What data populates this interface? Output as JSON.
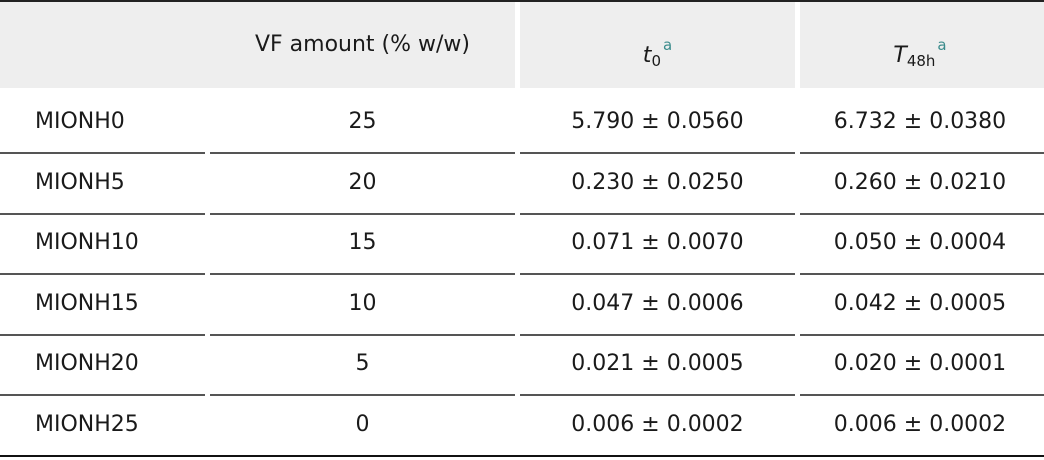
{
  "table": {
    "header": {
      "vf_amount": "VF amount (% w/w)",
      "t0": {
        "symbol": "t",
        "sub": "0",
        "sup": "a"
      },
      "t48h": {
        "symbol": "T",
        "sub": "48h",
        "sup": "a"
      }
    },
    "rows": [
      [
        "MIONH0",
        25,
        "5.790 ± 0.0560",
        "6.732 ± 0.0380"
      ],
      [
        "MIONH5",
        20,
        "0.230 ± 0.0250",
        "0.260 ± 0.0210"
      ],
      [
        "MIONH10",
        15,
        "0.071 ± 0.0070",
        "0.050 ± 0.0004"
      ],
      [
        "MIONH15",
        10,
        "0.047 ± 0.0006",
        "0.042 ± 0.0005"
      ],
      [
        "MIONH20",
        5,
        "0.021 ± 0.0005",
        "0.020 ± 0.0001"
      ],
      [
        "MIONH25",
        0,
        "0.006 ± 0.0002",
        "0.006 ± 0.0002"
      ]
    ]
  }
}
